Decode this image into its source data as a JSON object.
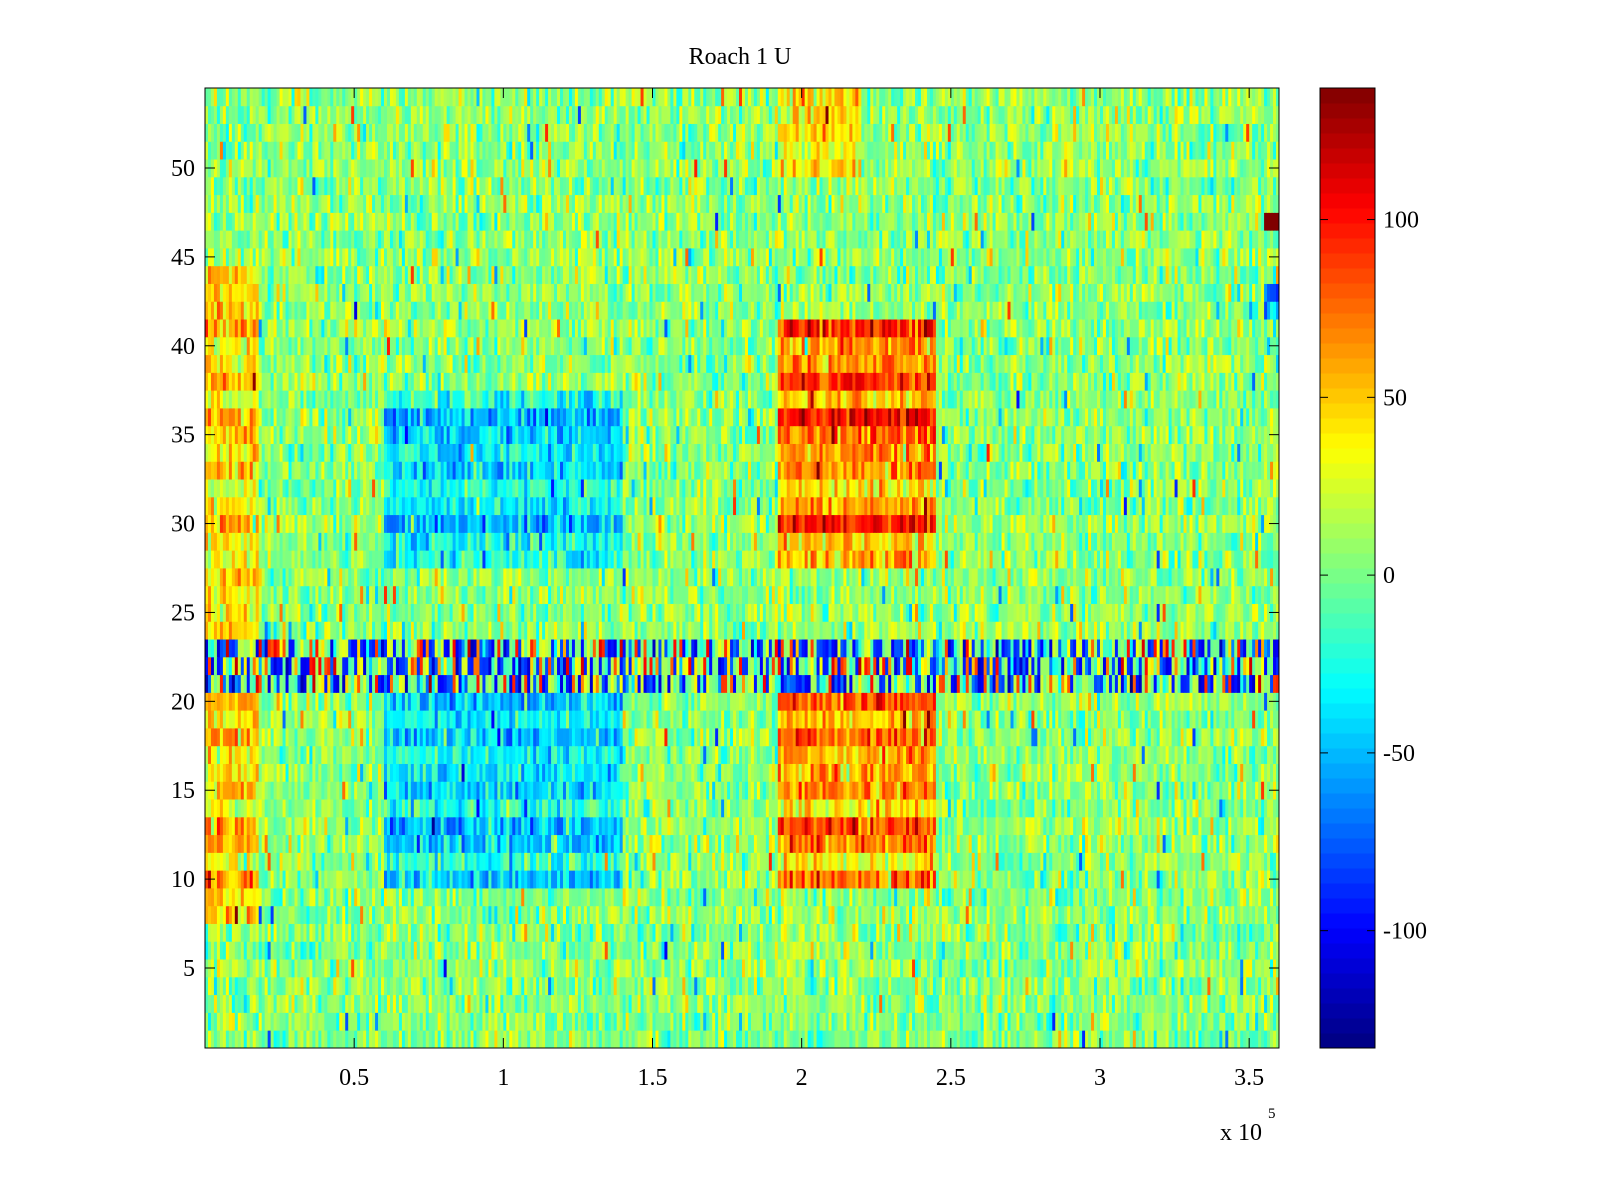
{
  "chart_data": {
    "type": "heatmap",
    "title": "Roach 1 U",
    "xlabel": "",
    "ylabel": "",
    "colormap": "jet",
    "x_multiplier_label": "x 10",
    "x_multiplier_exponent": "5",
    "xlim": [
      0,
      360000
    ],
    "ylim": [
      0.5,
      54.5
    ],
    "clim": [
      -133,
      137
    ],
    "x_ticks": [
      50000,
      100000,
      150000,
      200000,
      250000,
      300000,
      350000
    ],
    "x_tick_labels": [
      "0.5",
      "1",
      "1.5",
      "2",
      "2.5",
      "3",
      "3.5"
    ],
    "y_ticks": [
      5,
      10,
      15,
      20,
      25,
      30,
      35,
      40,
      45,
      50
    ],
    "y_tick_labels": [
      "5",
      "10",
      "15",
      "20",
      "25",
      "30",
      "35",
      "40",
      "45",
      "50"
    ],
    "colorbar_ticks": [
      -100,
      -50,
      0,
      50,
      100
    ],
    "colorbar_tick_labels": [
      "-100",
      "-50",
      "0",
      "50",
      "100"
    ],
    "rows": 54,
    "regions": [
      {
        "x": [
          0,
          18000
        ],
        "y": [
          8,
          44
        ],
        "mean": 45
      },
      {
        "x": [
          60000,
          140000
        ],
        "y": [
          28,
          37
        ],
        "mean": -40
      },
      {
        "x": [
          60000,
          140000
        ],
        "y": [
          10,
          20
        ],
        "mean": -35
      },
      {
        "x": [
          192000,
          245000
        ],
        "y": [
          28,
          41
        ],
        "mean": 75
      },
      {
        "x": [
          192000,
          245000
        ],
        "y": [
          10,
          20
        ],
        "mean": 60
      },
      {
        "x": [
          192000,
          220000
        ],
        "y": [
          50,
          54
        ],
        "mean": 40
      },
      {
        "x": [
          0,
          360000
        ],
        "y": [
          21,
          23
        ],
        "mean": 0,
        "note": "alternating extreme stripes"
      },
      {
        "x": [
          355000,
          360000
        ],
        "y": [
          47,
          47
        ],
        "mean": 130
      },
      {
        "x": [
          355000,
          360000
        ],
        "y": [
          42,
          43
        ],
        "mean": -60
      }
    ],
    "background_mean": 5
  }
}
